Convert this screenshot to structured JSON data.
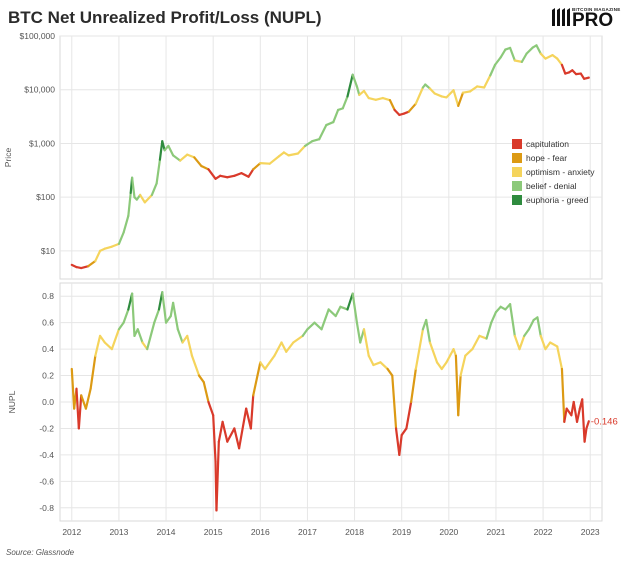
{
  "title": "BTC Net Unrealized Profit/Loss (NUPL)",
  "source": "Source: Glassnode",
  "logo": {
    "small_text": "BITCOIN MAGAZINE",
    "big_text": "PRO",
    "icon": "bitcoin-magazine-stripes-icon"
  },
  "colors": {
    "capitulation": "#d93a2b",
    "hope-fear": "#dc9a14",
    "optimism-anxiety": "#f5d45c",
    "belief-denial": "#8cc97a",
    "euphoria-greed": "#2e8b3e",
    "grid": "#e6e6e6",
    "axis_text": "#555555",
    "annotation": "#d93a2b"
  },
  "chart_data": [
    {
      "type": "line",
      "scale": "log",
      "ylabel": "Price",
      "yticks": [
        10,
        100,
        1000,
        10000,
        100000
      ],
      "ytick_labels": [
        "$10",
        "$100",
        "$1,000",
        "$10,000",
        "$100,000"
      ],
      "ylim": [
        3,
        100000
      ],
      "xlim": [
        2011.75,
        2023.25
      ],
      "legend_position": "right-middle",
      "legend": [
        {
          "key": "capitulation",
          "label": "capitulation"
        },
        {
          "key": "hope-fear",
          "label": "hope - fear"
        },
        {
          "key": "optimism-anxiety",
          "label": "optimism - anxiety"
        },
        {
          "key": "belief-denial",
          "label": "belief - denial"
        },
        {
          "key": "euphoria-greed",
          "label": "euphoria - greed"
        }
      ],
      "series": [
        {
          "points": [
            [
              2012.0,
              5.5
            ],
            [
              2012.1,
              5.0
            ],
            [
              2012.2,
              4.8
            ],
            [
              2012.35,
              5.2
            ],
            [
              2012.5,
              6.5
            ],
            [
              2012.6,
              10
            ],
            [
              2012.7,
              11
            ],
            [
              2012.85,
              12
            ],
            [
              2013.0,
              13.5
            ],
            [
              2013.1,
              22
            ],
            [
              2013.2,
              45
            ],
            [
              2013.25,
              120
            ],
            [
              2013.28,
              230
            ],
            [
              2013.33,
              100
            ],
            [
              2013.38,
              90
            ],
            [
              2013.45,
              110
            ],
            [
              2013.55,
              80
            ],
            [
              2013.7,
              110
            ],
            [
              2013.8,
              180
            ],
            [
              2013.87,
              500
            ],
            [
              2013.92,
              1100
            ],
            [
              2013.97,
              750
            ],
            [
              2014.05,
              900
            ],
            [
              2014.15,
              600
            ],
            [
              2014.3,
              480
            ],
            [
              2014.45,
              620
            ],
            [
              2014.6,
              550
            ],
            [
              2014.75,
              380
            ],
            [
              2014.9,
              330
            ],
            [
              2015.05,
              220
            ],
            [
              2015.15,
              250
            ],
            [
              2015.3,
              235
            ],
            [
              2015.45,
              250
            ],
            [
              2015.6,
              280
            ],
            [
              2015.75,
              240
            ],
            [
              2015.85,
              330
            ],
            [
              2016.0,
              430
            ],
            [
              2016.2,
              420
            ],
            [
              2016.4,
              580
            ],
            [
              2016.5,
              680
            ],
            [
              2016.6,
              600
            ],
            [
              2016.8,
              650
            ],
            [
              2016.95,
              900
            ],
            [
              2017.1,
              1100
            ],
            [
              2017.25,
              1200
            ],
            [
              2017.4,
              2200
            ],
            [
              2017.55,
              2500
            ],
            [
              2017.65,
              4200
            ],
            [
              2017.75,
              4500
            ],
            [
              2017.85,
              7500
            ],
            [
              2017.96,
              19000
            ],
            [
              2018.05,
              11500
            ],
            [
              2018.1,
              8000
            ],
            [
              2018.2,
              9500
            ],
            [
              2018.3,
              7000
            ],
            [
              2018.45,
              6500
            ],
            [
              2018.6,
              7000
            ],
            [
              2018.75,
              6400
            ],
            [
              2018.85,
              4200
            ],
            [
              2018.95,
              3400
            ],
            [
              2019.05,
              3600
            ],
            [
              2019.15,
              3900
            ],
            [
              2019.3,
              5500
            ],
            [
              2019.45,
              11000
            ],
            [
              2019.5,
              12500
            ],
            [
              2019.6,
              10500
            ],
            [
              2019.7,
              8500
            ],
            [
              2019.85,
              7500
            ],
            [
              2019.95,
              7200
            ],
            [
              2020.1,
              9800
            ],
            [
              2020.2,
              5000
            ],
            [
              2020.3,
              8800
            ],
            [
              2020.45,
              9300
            ],
            [
              2020.6,
              11500
            ],
            [
              2020.75,
              11000
            ],
            [
              2020.88,
              18500
            ],
            [
              2020.98,
              29000
            ],
            [
              2021.1,
              40000
            ],
            [
              2021.2,
              56000
            ],
            [
              2021.3,
              60000
            ],
            [
              2021.4,
              35000
            ],
            [
              2021.55,
              33000
            ],
            [
              2021.65,
              47000
            ],
            [
              2021.78,
              61000
            ],
            [
              2021.86,
              67000
            ],
            [
              2021.95,
              47000
            ],
            [
              2022.05,
              38000
            ],
            [
              2022.2,
              44000
            ],
            [
              2022.3,
              38000
            ],
            [
              2022.4,
              29000
            ],
            [
              2022.47,
              20000
            ],
            [
              2022.55,
              21000
            ],
            [
              2022.62,
              23000
            ],
            [
              2022.7,
              19500
            ],
            [
              2022.8,
              20000
            ],
            [
              2022.87,
              16000
            ],
            [
              2022.97,
              16800
            ]
          ]
        }
      ]
    },
    {
      "type": "line",
      "ylabel": "NUPL",
      "yticks": [
        -0.8,
        -0.6,
        -0.4,
        -0.2,
        0.0,
        0.2,
        0.4,
        0.6,
        0.8
      ],
      "ytick_labels": [
        "-0.8",
        "-0.6",
        "-0.4",
        "-0.2",
        "0.0",
        "0.2",
        "0.4",
        "0.6",
        "0.8"
      ],
      "ylim": [
        -0.9,
        0.9
      ],
      "xlim": [
        2011.75,
        2023.25
      ],
      "xticks": [
        2012,
        2013,
        2014,
        2015,
        2016,
        2017,
        2018,
        2019,
        2020,
        2021,
        2022,
        2023
      ],
      "xtick_labels": [
        "2012",
        "2013",
        "2014",
        "2015",
        "2016",
        "2017",
        "2018",
        "2019",
        "2020",
        "2021",
        "2022",
        "2023"
      ],
      "annotation": {
        "x": 2022.97,
        "y": -0.146,
        "text": "-0.146"
      },
      "series": [
        {
          "points": [
            [
              2012.0,
              0.25
            ],
            [
              2012.05,
              -0.05
            ],
            [
              2012.1,
              0.1
            ],
            [
              2012.15,
              -0.2
            ],
            [
              2012.2,
              0.05
            ],
            [
              2012.3,
              -0.05
            ],
            [
              2012.4,
              0.1
            ],
            [
              2012.5,
              0.35
            ],
            [
              2012.6,
              0.5
            ],
            [
              2012.7,
              0.45
            ],
            [
              2012.85,
              0.4
            ],
            [
              2013.0,
              0.55
            ],
            [
              2013.1,
              0.6
            ],
            [
              2013.2,
              0.7
            ],
            [
              2013.28,
              0.82
            ],
            [
              2013.33,
              0.5
            ],
            [
              2013.4,
              0.55
            ],
            [
              2013.5,
              0.45
            ],
            [
              2013.6,
              0.4
            ],
            [
              2013.75,
              0.6
            ],
            [
              2013.85,
              0.7
            ],
            [
              2013.92,
              0.83
            ],
            [
              2014.0,
              0.6
            ],
            [
              2014.1,
              0.65
            ],
            [
              2014.15,
              0.75
            ],
            [
              2014.25,
              0.55
            ],
            [
              2014.35,
              0.45
            ],
            [
              2014.45,
              0.5
            ],
            [
              2014.55,
              0.35
            ],
            [
              2014.7,
              0.2
            ],
            [
              2014.8,
              0.15
            ],
            [
              2014.9,
              0.0
            ],
            [
              2015.0,
              -0.1
            ],
            [
              2015.05,
              -0.45
            ],
            [
              2015.07,
              -0.82
            ],
            [
              2015.12,
              -0.3
            ],
            [
              2015.2,
              -0.15
            ],
            [
              2015.3,
              -0.3
            ],
            [
              2015.45,
              -0.2
            ],
            [
              2015.55,
              -0.35
            ],
            [
              2015.7,
              -0.05
            ],
            [
              2015.8,
              -0.2
            ],
            [
              2015.85,
              0.05
            ],
            [
              2016.0,
              0.3
            ],
            [
              2016.1,
              0.25
            ],
            [
              2016.3,
              0.35
            ],
            [
              2016.45,
              0.45
            ],
            [
              2016.55,
              0.38
            ],
            [
              2016.7,
              0.45
            ],
            [
              2016.9,
              0.5
            ],
            [
              2017.0,
              0.55
            ],
            [
              2017.15,
              0.6
            ],
            [
              2017.3,
              0.55
            ],
            [
              2017.45,
              0.7
            ],
            [
              2017.6,
              0.65
            ],
            [
              2017.7,
              0.72
            ],
            [
              2017.85,
              0.7
            ],
            [
              2017.96,
              0.82
            ],
            [
              2018.05,
              0.6
            ],
            [
              2018.12,
              0.45
            ],
            [
              2018.2,
              0.55
            ],
            [
              2018.3,
              0.35
            ],
            [
              2018.4,
              0.28
            ],
            [
              2018.55,
              0.3
            ],
            [
              2018.7,
              0.25
            ],
            [
              2018.8,
              0.2
            ],
            [
              2018.88,
              -0.2
            ],
            [
              2018.95,
              -0.4
            ],
            [
              2019.0,
              -0.25
            ],
            [
              2019.1,
              -0.2
            ],
            [
              2019.2,
              0.0
            ],
            [
              2019.3,
              0.25
            ],
            [
              2019.45,
              0.55
            ],
            [
              2019.52,
              0.62
            ],
            [
              2019.6,
              0.45
            ],
            [
              2019.75,
              0.3
            ],
            [
              2019.85,
              0.25
            ],
            [
              2019.95,
              0.3
            ],
            [
              2020.1,
              0.4
            ],
            [
              2020.15,
              0.35
            ],
            [
              2020.2,
              -0.1
            ],
            [
              2020.25,
              0.2
            ],
            [
              2020.35,
              0.35
            ],
            [
              2020.5,
              0.4
            ],
            [
              2020.65,
              0.5
            ],
            [
              2020.8,
              0.48
            ],
            [
              2020.9,
              0.6
            ],
            [
              2021.0,
              0.68
            ],
            [
              2021.1,
              0.72
            ],
            [
              2021.2,
              0.7
            ],
            [
              2021.3,
              0.74
            ],
            [
              2021.4,
              0.5
            ],
            [
              2021.5,
              0.4
            ],
            [
              2021.6,
              0.5
            ],
            [
              2021.7,
              0.55
            ],
            [
              2021.8,
              0.62
            ],
            [
              2021.88,
              0.64
            ],
            [
              2021.95,
              0.5
            ],
            [
              2022.05,
              0.4
            ],
            [
              2022.15,
              0.45
            ],
            [
              2022.3,
              0.42
            ],
            [
              2022.4,
              0.25
            ],
            [
              2022.45,
              -0.15
            ],
            [
              2022.5,
              -0.05
            ],
            [
              2022.6,
              -0.1
            ],
            [
              2022.65,
              0.0
            ],
            [
              2022.72,
              -0.15
            ],
            [
              2022.78,
              -0.05
            ],
            [
              2022.83,
              0.02
            ],
            [
              2022.88,
              -0.3
            ],
            [
              2022.92,
              -0.2
            ],
            [
              2022.97,
              -0.146
            ]
          ]
        }
      ]
    }
  ]
}
